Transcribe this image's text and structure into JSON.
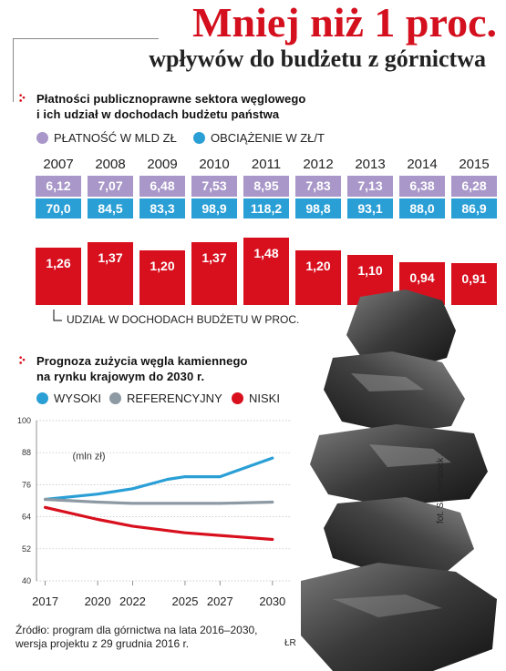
{
  "header": {
    "title": "Mniej niż 1 proc.",
    "subtitle": "wpływów do budżetu z górnictwa"
  },
  "section1": {
    "title_line1": "Płatności publicznoprawne sektora węglowego",
    "title_line2": "i ich udział w dochodach budżetu państwa",
    "legend_payments": "PŁATNOŚĆ W MLD ZŁ",
    "legend_burden": "OBCIĄŻENIE W ZŁ/T",
    "share_note": "UDZIAŁ W DOCHODACH BUDŻETU W PROC."
  },
  "section2": {
    "title_line1": "Prognoza zużycia węgla kamiennego",
    "title_line2": "na rynku krajowym do 2030 r.",
    "legend_high": "WYSOKI",
    "legend_ref": "REFERENCYJNY",
    "legend_low": "NISKI",
    "unit": "(mln zł)"
  },
  "source": {
    "line1": "Źródło: program dla górnictwa na lata 2016–2030,",
    "line2": "wersja projektu z 29 grudnia 2016 r.",
    "initials": "ŁR"
  },
  "photo_credit": "fot. Shutterstock",
  "colors": {
    "accent_red": "#d8101e",
    "payments_purple": "#a897c8",
    "burden_blue": "#2a9fd6",
    "reference_gray": "#8d99a3"
  },
  "chart_data": [
    {
      "type": "table",
      "categories": [
        "2007",
        "2008",
        "2009",
        "2010",
        "2011",
        "2012",
        "2013",
        "2014",
        "2015"
      ],
      "series": [
        {
          "name": "PŁATNOŚĆ W MLD ZŁ",
          "values": [
            "6,12",
            "7,07",
            "6,48",
            "7,53",
            "8,95",
            "7,83",
            "7,13",
            "6,38",
            "6,28"
          ]
        },
        {
          "name": "OBCIĄŻENIE W ZŁ/T",
          "values": [
            "70,0",
            "84,5",
            "83,3",
            "98,9",
            "118,2",
            "98,8",
            "93,1",
            "88,0",
            "86,9"
          ]
        }
      ]
    },
    {
      "type": "bar",
      "categories": [
        "2007",
        "2008",
        "2009",
        "2010",
        "2011",
        "2012",
        "2013",
        "2014",
        "2015"
      ],
      "values": [
        1.26,
        1.37,
        1.2,
        1.37,
        1.48,
        1.2,
        1.1,
        0.94,
        0.91
      ],
      "labels": [
        "1,26",
        "1,37",
        "1,20",
        "1,37",
        "1,48",
        "1,20",
        "1,10",
        "0,94",
        "0,91"
      ],
      "ylabel": "UDZIAŁ W DOCHODACH BUDŻETU W PROC."
    },
    {
      "type": "line",
      "x": [
        2017,
        2020,
        2022,
        2025,
        2027,
        2030
      ],
      "xticks": [
        "2017",
        "2020",
        "2022",
        "2025",
        "2027",
        "2030"
      ],
      "yticks": [
        "40",
        "52",
        "64",
        "76",
        "88",
        "100"
      ],
      "ylim": [
        40,
        100
      ],
      "ylabel": "(mln zł)",
      "grid": true,
      "series": [
        {
          "name": "WYSOKI",
          "color": "#2a9fd6",
          "points": [
            [
              2017,
              70.5
            ],
            [
              2020,
              72.5
            ],
            [
              2022,
              74.5
            ],
            [
              2024,
              78
            ],
            [
              2025,
              79
            ],
            [
              2027,
              79
            ],
            [
              2030,
              86
            ]
          ]
        },
        {
          "name": "REFERENCYJNY",
          "color": "#8d99a3",
          "points": [
            [
              2017,
              70.5
            ],
            [
              2020,
              69.5
            ],
            [
              2022,
              69
            ],
            [
              2025,
              69
            ],
            [
              2027,
              69
            ],
            [
              2030,
              69.5
            ]
          ]
        },
        {
          "name": "NISKI",
          "color": "#d8101e",
          "points": [
            [
              2017,
              67.5
            ],
            [
              2020,
              63
            ],
            [
              2022,
              60.5
            ],
            [
              2025,
              58
            ],
            [
              2027,
              57
            ],
            [
              2030,
              55.5
            ]
          ]
        }
      ]
    }
  ]
}
